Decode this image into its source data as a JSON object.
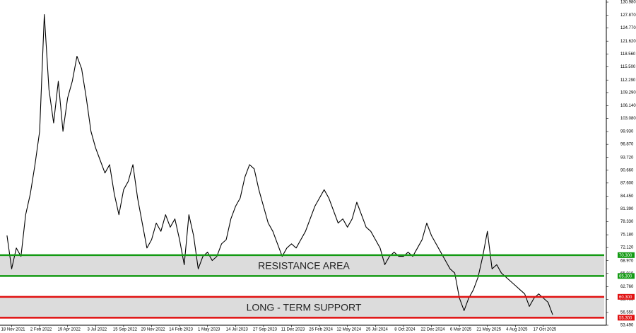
{
  "chart_data": {
    "type": "line",
    "color": "#000000",
    "values": [
      75,
      67,
      72,
      70,
      80,
      85,
      92,
      100,
      128,
      110,
      102,
      112,
      100,
      108,
      112,
      118,
      115,
      108,
      100,
      96,
      93,
      90,
      92,
      85,
      80,
      86,
      88,
      92,
      84,
      78,
      72,
      74,
      78,
      76,
      80,
      77,
      79,
      74,
      68,
      80,
      75,
      67,
      70,
      71,
      69,
      70,
      73,
      74,
      79,
      82,
      84,
      89,
      92,
      91,
      86,
      82,
      78,
      76,
      73,
      70,
      72,
      73,
      72,
      74,
      76,
      79,
      82,
      84,
      86,
      84,
      81,
      78,
      79,
      77,
      79,
      83,
      80,
      77,
      76,
      74,
      72,
      68,
      70,
      71,
      70,
      70,
      71,
      70,
      72,
      74,
      78,
      75,
      73,
      71,
      69,
      67,
      66,
      60,
      57,
      60,
      62,
      65,
      70,
      76,
      67,
      68,
      66,
      65,
      64,
      63,
      62,
      61,
      58,
      60,
      61,
      60,
      59,
      56
    ],
    "xlim": [
      -1.5,
      128.5
    ],
    "xticks": [
      {
        "value": 1,
        "label": "18 Nov 2021"
      },
      {
        "value": 7,
        "label": "2 Feb 2022"
      },
      {
        "value": 13,
        "label": "19 Apr 2022"
      },
      {
        "value": 19,
        "label": "3 Jul 2022"
      },
      {
        "value": 25,
        "label": "15 Sep 2022"
      },
      {
        "value": 31,
        "label": "29 Nov 2022"
      },
      {
        "value": 37,
        "label": "14 Feb 2023"
      },
      {
        "value": 43,
        "label": "1 May 2023"
      },
      {
        "value": 49,
        "label": "14 Jul 2023"
      },
      {
        "value": 55,
        "label": "27 Sep 2023"
      },
      {
        "value": 61,
        "label": "11 Dec 2023"
      },
      {
        "value": 67,
        "label": "26 Feb 2024"
      },
      {
        "value": 73,
        "label": "12 May 2024"
      },
      {
        "value": 79,
        "label": "25 Jul 2024"
      },
      {
        "value": 85,
        "label": "8 Oct 2024"
      },
      {
        "value": 91,
        "label": "22 Dec 2024"
      },
      {
        "value": 97,
        "label": "6 Mar 2025"
      },
      {
        "value": 103,
        "label": "21 May 2025"
      },
      {
        "value": 109,
        "label": "4 Aug 2025"
      },
      {
        "value": 115,
        "label": "17 Oct 2025"
      }
    ],
    "ylim": [
      53.49,
      130.98
    ],
    "yticks": [
      {
        "value": 130.98,
        "label": "130.980"
      },
      {
        "value": 127.87,
        "label": "127.870"
      },
      {
        "value": 124.77,
        "label": "124.770"
      },
      {
        "value": 121.62,
        "label": "121.620"
      },
      {
        "value": 118.56,
        "label": "118.560"
      },
      {
        "value": 115.5,
        "label": "115.500"
      },
      {
        "value": 112.29,
        "label": "112.290"
      },
      {
        "value": 109.29,
        "label": "109.290"
      },
      {
        "value": 106.14,
        "label": "106.140"
      },
      {
        "value": 103.08,
        "label": "103.080"
      },
      {
        "value": 99.93,
        "label": "99.930"
      },
      {
        "value": 96.87,
        "label": "96.870"
      },
      {
        "value": 93.72,
        "label": "93.720"
      },
      {
        "value": 90.66,
        "label": "90.660"
      },
      {
        "value": 87.6,
        "label": "87.600"
      },
      {
        "value": 84.45,
        "label": "84.450"
      },
      {
        "value": 81.39,
        "label": "81.390"
      },
      {
        "value": 78.33,
        "label": "78.330"
      },
      {
        "value": 75.18,
        "label": "75.180"
      },
      {
        "value": 72.12,
        "label": "72.120"
      },
      {
        "value": 68.97,
        "label": "68.970"
      },
      {
        "value": 65.91,
        "label": "65.910"
      },
      {
        "value": 62.76,
        "label": "62.760"
      },
      {
        "value": 59.7,
        "label": "59.700"
      },
      {
        "value": 56.55,
        "label": "56.550"
      },
      {
        "value": 53.49,
        "label": "53.490"
      }
    ],
    "zones": [
      {
        "label": "RESISTANCE AREA",
        "color": "#139a13",
        "upper": {
          "value": 70.3,
          "label": "70.300"
        },
        "lower": {
          "value": 65.3,
          "label": "65.300"
        }
      },
      {
        "label": "LONG - TERM SUPPORT",
        "color": "#e01010",
        "upper": {
          "value": 60.3,
          "label": "60.300"
        },
        "lower": {
          "value": 55.3,
          "label": "55.300"
        }
      }
    ]
  }
}
